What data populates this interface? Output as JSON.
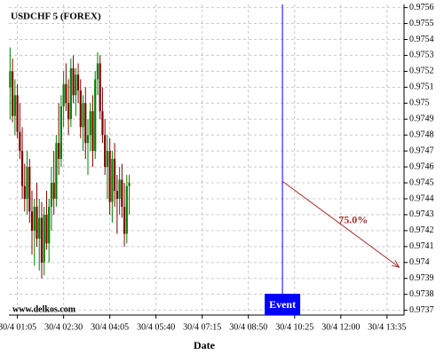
{
  "chart_data": {
    "type": "candlestick",
    "title": "USDCHF 5 (FOREX)",
    "watermark": "www.delkos.com",
    "x_label": "Date",
    "open": [
      0.9751,
      0.9752,
      0.97492,
      0.97505,
      0.97482,
      0.9747,
      0.97448,
      0.9744,
      0.9746,
      0.97432,
      0.9742,
      0.97435,
      0.97415,
      0.97428,
      0.974,
      0.9743,
      0.97412,
      0.97435,
      0.9745,
      0.9744,
      0.97475,
      0.97465,
      0.97498,
      0.97512,
      0.975,
      0.9749,
      0.97522,
      0.97505,
      0.97518,
      0.97508,
      0.97485,
      0.975,
      0.97475,
      0.9748,
      0.97495,
      0.9747,
      0.97515,
      0.97525,
      0.97495,
      0.9748,
      0.9746,
      0.9747,
      0.97438,
      0.97465,
      0.97445,
      0.9744,
      0.97452,
      0.97435,
      0.97418,
      0.97448
    ],
    "high": [
      0.97535,
      0.97528,
      0.97515,
      0.97512,
      0.975,
      0.97485,
      0.97462,
      0.9747,
      0.97465,
      0.97445,
      0.9744,
      0.9745,
      0.9744,
      0.97438,
      0.97435,
      0.97445,
      0.9744,
      0.9746,
      0.9747,
      0.9748,
      0.975,
      0.97505,
      0.9752,
      0.97525,
      0.97515,
      0.97528,
      0.9753,
      0.97522,
      0.97525,
      0.97515,
      0.97505,
      0.9751,
      0.9749,
      0.975,
      0.97505,
      0.9752,
      0.97532,
      0.9753,
      0.9751,
      0.9749,
      0.9748,
      0.97478,
      0.9747,
      0.97475,
      0.97455,
      0.9746,
      0.97462,
      0.9745,
      0.97455,
      0.97455
    ],
    "low": [
      0.9749,
      0.97488,
      0.9748,
      0.97478,
      0.97465,
      0.9744,
      0.97432,
      0.9743,
      0.97425,
      0.97405,
      0.97398,
      0.9741,
      0.97395,
      0.9739,
      0.97392,
      0.97408,
      0.974,
      0.9742,
      0.9743,
      0.97435,
      0.97455,
      0.9746,
      0.97485,
      0.97495,
      0.9748,
      0.97485,
      0.975,
      0.97492,
      0.975,
      0.97478,
      0.9747,
      0.97465,
      0.97455,
      0.9747,
      0.9746,
      0.97465,
      0.97505,
      0.9749,
      0.97475,
      0.97455,
      0.9744,
      0.9743,
      0.97425,
      0.97435,
      0.97418,
      0.9743,
      0.97428,
      0.9741,
      0.97412,
      0.9743
    ],
    "close": [
      0.9752,
      0.97492,
      0.97505,
      0.97482,
      0.9747,
      0.97448,
      0.9744,
      0.9746,
      0.97432,
      0.9742,
      0.97435,
      0.97415,
      0.97428,
      0.974,
      0.9743,
      0.97412,
      0.97435,
      0.9745,
      0.9744,
      0.97475,
      0.97465,
      0.97498,
      0.97512,
      0.975,
      0.9749,
      0.97522,
      0.97505,
      0.97518,
      0.97508,
      0.97485,
      0.975,
      0.97475,
      0.9748,
      0.97495,
      0.9747,
      0.97515,
      0.97525,
      0.97495,
      0.9748,
      0.9746,
      0.9747,
      0.97438,
      0.97465,
      0.97445,
      0.9744,
      0.97452,
      0.97435,
      0.97418,
      0.97448,
      0.9745
    ],
    "up_color": "#008000",
    "down_color": "#800000",
    "xlim": [
      -0.5,
      162
    ],
    "xticks": [
      {
        "value": 3,
        "label": "30/4 01:05"
      },
      {
        "value": 22,
        "label": "30/4 02:30"
      },
      {
        "value": 41,
        "label": "30/4 04:05"
      },
      {
        "value": 60,
        "label": "30/4 05:40"
      },
      {
        "value": 79,
        "label": "30/4 07:15"
      },
      {
        "value": 98,
        "label": "30/4 08:50"
      },
      {
        "value": 117,
        "label": "30/4 10:25"
      },
      {
        "value": 136,
        "label": "30/4 12:00"
      },
      {
        "value": 155,
        "label": "30/4 13:35"
      }
    ],
    "ylim": [
      0.97367,
      0.97562
    ],
    "yticks": [
      0.9737,
      0.9738,
      0.9739,
      0.974,
      0.9741,
      0.9742,
      0.9743,
      0.9744,
      0.9745,
      0.9746,
      0.9747,
      0.9748,
      0.9749,
      0.975,
      0.9751,
      0.9752,
      0.9753,
      0.9754,
      0.9755,
      0.9756
    ],
    "grid": true,
    "event": {
      "x": 112,
      "label": "Event",
      "color": "#0000ff"
    },
    "projection": {
      "x": [
        112,
        160
      ],
      "y": [
        0.97451,
        0.97397
      ],
      "label": "75.0%",
      "color": "#a52a2a"
    }
  }
}
